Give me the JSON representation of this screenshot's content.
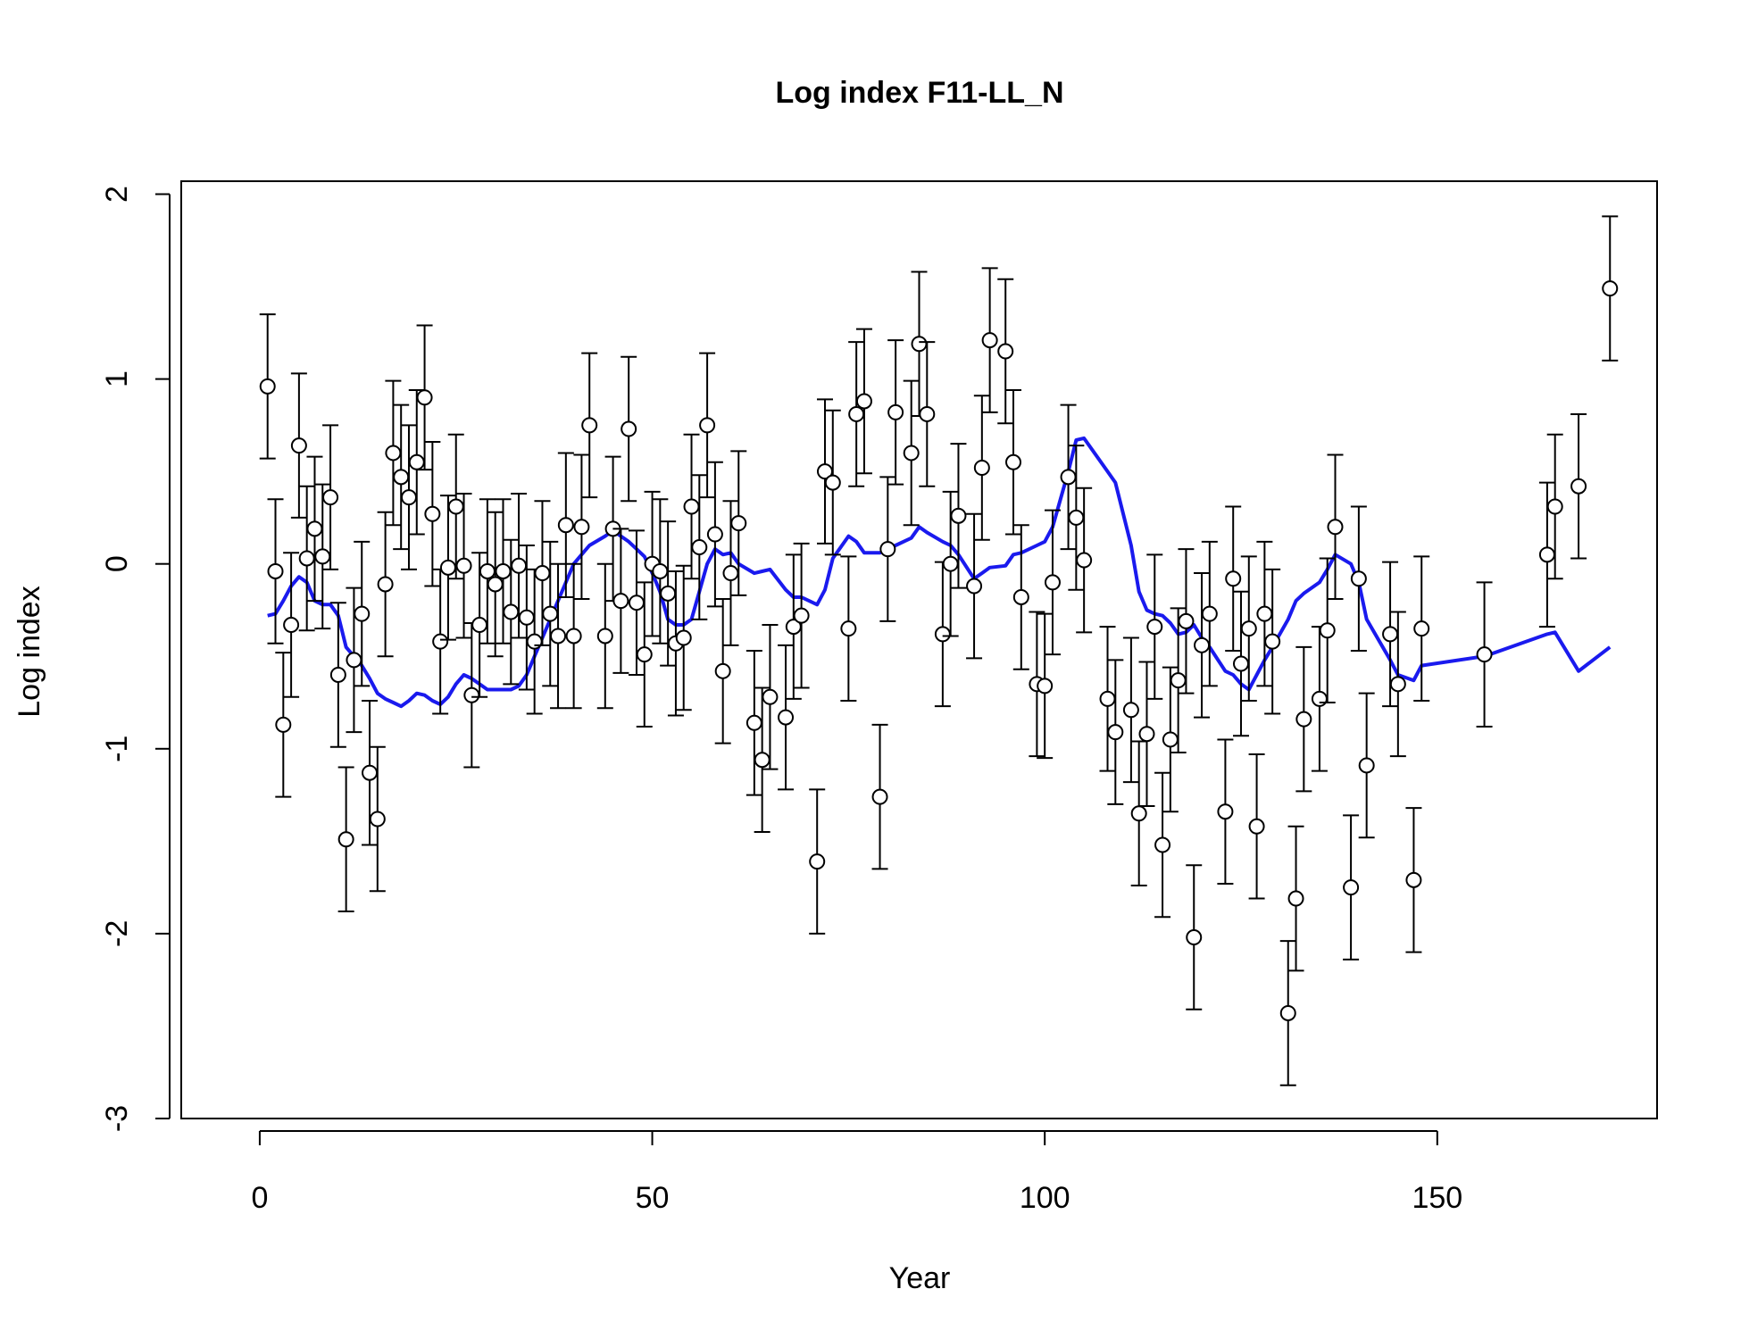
{
  "chart_data": {
    "type": "scatter",
    "title": "Log index F11-LL_N",
    "xlabel": "Year",
    "ylabel": "Log index",
    "xlim": [
      -10,
      178
    ],
    "ylim": [
      -3,
      2.07
    ],
    "xticks": [
      0,
      50,
      100,
      150
    ],
    "yticks": [
      -3,
      -2,
      -1,
      0,
      1,
      2
    ],
    "xtick_labels": [
      "0",
      "50",
      "100",
      "150"
    ],
    "ytick_labels": [
      "-3",
      "-2",
      "-1",
      "0",
      "1",
      "2"
    ],
    "grid": false,
    "legend": "none",
    "colors": {
      "observed": "#000000",
      "fitted": "#1a1aee"
    },
    "error_bar_halfwidth": 0.39,
    "series": [
      {
        "kind": "observed",
        "x": [
          1,
          2,
          3,
          4,
          5,
          6,
          7,
          8,
          9,
          10,
          11,
          12,
          13,
          14,
          15,
          16,
          17,
          18,
          19,
          20,
          21,
          22,
          23,
          24,
          25,
          26,
          27,
          28,
          29,
          30,
          31,
          32,
          33,
          34,
          35,
          36,
          37,
          38,
          39,
          40,
          41,
          42,
          44,
          45,
          46,
          47,
          48,
          49,
          50,
          51,
          52,
          53,
          54,
          55,
          56,
          57,
          58,
          59,
          60,
          61,
          63,
          64,
          65,
          67,
          68,
          69,
          71,
          72,
          73,
          75,
          76,
          77,
          79,
          80,
          81,
          83,
          84,
          85,
          87,
          88,
          89,
          91,
          92,
          93,
          95,
          96,
          97,
          99,
          100,
          101,
          103,
          104,
          105,
          108,
          109,
          111,
          112,
          113,
          114,
          115,
          116,
          117,
          118,
          119,
          120,
          121,
          123,
          124,
          125,
          126,
          127,
          128,
          129,
          131,
          132,
          133,
          135,
          136,
          137,
          139,
          140,
          141,
          144,
          145,
          147,
          148,
          156,
          164,
          165,
          168,
          172
        ],
        "y": [
          0.96,
          -0.04,
          -0.87,
          -0.33,
          0.64,
          0.03,
          0.19,
          0.04,
          0.36,
          -0.6,
          -1.49,
          -0.52,
          -0.27,
          -1.13,
          -1.38,
          -0.11,
          0.6,
          0.47,
          0.36,
          0.55,
          0.9,
          0.27,
          -0.42,
          -0.02,
          0.31,
          -0.01,
          -0.71,
          -0.33,
          -0.04,
          -0.11,
          -0.04,
          -0.26,
          -0.01,
          -0.29,
          -0.42,
          -0.05,
          -0.27,
          -0.39,
          0.21,
          -0.39,
          0.2,
          0.75,
          -0.39,
          0.19,
          -0.2,
          0.73,
          -0.21,
          -0.49,
          0,
          -0.04,
          -0.16,
          -0.43,
          -0.4,
          0.31,
          0.09,
          0.75,
          0.16,
          -0.58,
          -0.05,
          0.22,
          -0.86,
          -1.06,
          -0.72,
          -0.83,
          -0.34,
          -0.28,
          -1.61,
          0.5,
          0.44,
          -0.35,
          0.81,
          0.88,
          -1.26,
          0.08,
          0.82,
          0.6,
          1.19,
          0.81,
          -0.38,
          0,
          0.26,
          -0.12,
          0.52,
          1.21,
          1.15,
          0.55,
          -0.18,
          -0.65,
          -0.66,
          -0.1,
          0.47,
          0.25,
          0.02,
          -0.73,
          -0.91,
          -0.79,
          -1.35,
          -0.92,
          -0.34,
          -1.52,
          -0.95,
          -0.63,
          -0.31,
          -2.02,
          -0.44,
          -0.27,
          -1.34,
          -0.08,
          -0.54,
          -0.35,
          -1.42,
          -0.27,
          -0.42,
          -2.43,
          -1.81,
          -0.84,
          -0.73,
          -0.36,
          0.2,
          -1.75,
          -0.08,
          -1.09,
          -0.38,
          -0.65,
          -1.71,
          -0.35,
          -0.49,
          0.05,
          0.31,
          0.42,
          1.49
        ]
      },
      {
        "kind": "fitted",
        "x": [
          1,
          2,
          3,
          4,
          5,
          6,
          7,
          8,
          9,
          10,
          11,
          12,
          13,
          14,
          15,
          16,
          17,
          18,
          19,
          20,
          21,
          22,
          23,
          24,
          25,
          26,
          27,
          28,
          29,
          30,
          31,
          32,
          33,
          34,
          35,
          36,
          37,
          38,
          39,
          40,
          41,
          42,
          44,
          45,
          46,
          47,
          48,
          49,
          50,
          51,
          52,
          53,
          54,
          55,
          56,
          57,
          58,
          59,
          60,
          61,
          63,
          64,
          65,
          67,
          68,
          69,
          71,
          72,
          73,
          75,
          76,
          77,
          79,
          80,
          81,
          83,
          84,
          85,
          87,
          88,
          89,
          91,
          92,
          93,
          95,
          96,
          97,
          99,
          100,
          101,
          103,
          104,
          105,
          108,
          109,
          111,
          112,
          113,
          114,
          115,
          116,
          117,
          118,
          119,
          120,
          121,
          123,
          124,
          125,
          126,
          127,
          128,
          129,
          131,
          132,
          133,
          135,
          136,
          137,
          139,
          140,
          141,
          144,
          145,
          147,
          148,
          156,
          164,
          165,
          168,
          172
        ],
        "y": [
          -0.28,
          -0.27,
          -0.2,
          -0.12,
          -0.07,
          -0.1,
          -0.2,
          -0.22,
          -0.22,
          -0.28,
          -0.45,
          -0.5,
          -0.55,
          -0.62,
          -0.7,
          -0.73,
          -0.75,
          -0.77,
          -0.74,
          -0.7,
          -0.71,
          -0.74,
          -0.76,
          -0.72,
          -0.65,
          -0.6,
          -0.62,
          -0.65,
          -0.68,
          -0.68,
          -0.68,
          -0.68,
          -0.66,
          -0.6,
          -0.5,
          -0.4,
          -0.3,
          -0.2,
          -0.1,
          0,
          0.05,
          0.1,
          0.15,
          0.18,
          0.15,
          0.12,
          0.08,
          0.04,
          -0.05,
          -0.15,
          -0.3,
          -0.33,
          -0.33,
          -0.3,
          -0.15,
          0,
          0.08,
          0.05,
          0.06,
          0,
          -0.05,
          -0.04,
          -0.03,
          -0.14,
          -0.18,
          -0.18,
          -0.22,
          -0.14,
          0.03,
          0.15,
          0.12,
          0.06,
          0.06,
          0.08,
          0.1,
          0.14,
          0.2,
          0.17,
          0.12,
          0.1,
          0.05,
          -0.08,
          -0.05,
          -0.02,
          -0.01,
          0.05,
          0.06,
          0.1,
          0.12,
          0.2,
          0.5,
          0.67,
          0.68,
          0.5,
          0.44,
          0.1,
          -0.15,
          -0.25,
          -0.27,
          -0.28,
          -0.32,
          -0.38,
          -0.37,
          -0.33,
          -0.4,
          -0.45,
          -0.58,
          -0.6,
          -0.65,
          -0.68,
          -0.6,
          -0.52,
          -0.45,
          -0.3,
          -0.2,
          -0.16,
          -0.1,
          -0.03,
          0.05,
          0,
          -0.1,
          -0.3,
          -0.52,
          -0.6,
          -0.63,
          -0.55,
          -0.5,
          -0.38,
          -0.37,
          -0.58,
          -0.45
        ]
      }
    ]
  }
}
